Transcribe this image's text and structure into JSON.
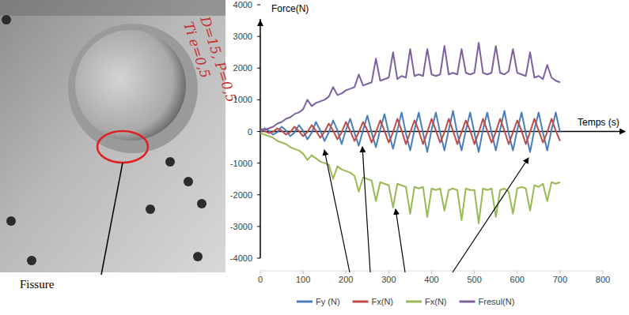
{
  "chart_data": {
    "type": "line",
    "ylabel": "Force(N)",
    "xlabel": "Temps (s)",
    "annotations": [
      "Fissure",
      "Ti e=0,5",
      "D=15, P=0,5"
    ],
    "x": [
      0,
      10,
      20,
      30,
      40,
      50,
      60,
      70,
      80,
      90,
      100,
      110,
      120,
      130,
      140,
      150,
      160,
      170,
      180,
      190,
      200,
      210,
      220,
      230,
      240,
      250,
      260,
      270,
      280,
      290,
      300,
      310,
      320,
      330,
      340,
      350,
      360,
      370,
      380,
      390,
      400,
      410,
      420,
      430,
      440,
      450,
      460,
      470,
      480,
      490,
      500,
      510,
      520,
      530,
      540,
      550,
      560,
      570,
      580,
      590,
      600,
      610,
      620,
      630,
      640,
      650,
      660,
      670,
      680,
      690,
      700
    ],
    "series": [
      {
        "name": "Fy (N)",
        "color": "#4a7ebb",
        "values": [
          0,
          100,
          20,
          -100,
          -20,
          150,
          30,
          -150,
          -30,
          200,
          20,
          -250,
          -40,
          300,
          30,
          -300,
          -30,
          350,
          40,
          -400,
          50,
          400,
          -50,
          -450,
          50,
          500,
          -40,
          -500,
          60,
          550,
          -50,
          -550,
          40,
          600,
          -60,
          -600,
          50,
          600,
          -50,
          -650,
          60,
          600,
          -40,
          -600,
          50,
          650,
          -60,
          -600,
          40,
          600,
          -50,
          -650,
          60,
          600,
          -40,
          -600,
          50,
          650,
          -60,
          -600,
          40,
          600,
          -50,
          -650,
          60,
          600,
          -40,
          -600,
          50,
          600,
          -30
        ]
      },
      {
        "name": "Fx(N)",
        "color": "#be4b48",
        "values": [
          100,
          10,
          -50,
          -10,
          100,
          20,
          -100,
          -20,
          150,
          10,
          -150,
          -20,
          200,
          20,
          -200,
          -10,
          250,
          30,
          -250,
          -30,
          300,
          20,
          -300,
          -20,
          300,
          30,
          -350,
          -30,
          350,
          20,
          -350,
          -20,
          400,
          30,
          -400,
          -30,
          350,
          20,
          -400,
          -20,
          400,
          30,
          -350,
          -30,
          400,
          20,
          -400,
          -20,
          350,
          30,
          -400,
          -30,
          400,
          20,
          -350,
          -20,
          400,
          30,
          -400,
          -30,
          350,
          20,
          -400,
          -20,
          400,
          30,
          -350,
          -30,
          400,
          20,
          -300
        ]
      },
      {
        "name": "Fx(N)",
        "color": "#98b954",
        "values": [
          -50,
          -100,
          -150,
          -200,
          -300,
          -350,
          -400,
          -500,
          -550,
          -600,
          -700,
          -900,
          -750,
          -850,
          -950,
          -1000,
          -1050,
          -1500,
          -1100,
          -1200,
          -1250,
          -1300,
          -1400,
          -1900,
          -1450,
          -1500,
          -1550,
          -2200,
          -1600,
          -1650,
          -1700,
          -2400,
          -1650,
          -1700,
          -1750,
          -2600,
          -1750,
          -1800,
          -1750,
          -2700,
          -1800,
          -1850,
          -1800,
          -2500,
          -1850,
          -1800,
          -1850,
          -2800,
          -1800,
          -1850,
          -1850,
          -2900,
          -1800,
          -1850,
          -1800,
          -2700,
          -1850,
          -1800,
          -1900,
          -2600,
          -1800,
          -1750,
          -1800,
          -2500,
          -1700,
          -1750,
          -1650,
          -2200,
          -1600,
          -1650,
          -1600
        ]
      },
      {
        "name": "Fresul(N)",
        "color": "#7d60a0",
        "values": [
          0,
          50,
          100,
          150,
          250,
          300,
          400,
          450,
          550,
          600,
          700,
          1000,
          800,
          900,
          950,
          1000,
          1100,
          1400,
          1150,
          1200,
          1300,
          1350,
          1400,
          1800,
          1450,
          1500,
          1550,
          2300,
          1600,
          1650,
          1700,
          2500,
          1650,
          1750,
          1700,
          2600,
          1750,
          1800,
          1750,
          2600,
          1800,
          1750,
          1800,
          2700,
          1800,
          1850,
          1800,
          2600,
          1850,
          1800,
          1850,
          2800,
          1850,
          1800,
          1850,
          2700,
          1850,
          1800,
          1900,
          2600,
          1850,
          1800,
          1750,
          2500,
          1700,
          1750,
          1650,
          2100,
          1700,
          1600,
          1550
        ]
      }
    ],
    "xlim": [
      0,
      800
    ],
    "xticks": [
      0,
      100,
      200,
      300,
      400,
      500,
      600,
      700,
      800
    ],
    "ylim": [
      -4000,
      4000
    ],
    "yticks": [
      -4000,
      -3000,
      -2000,
      -1000,
      0,
      1000,
      2000,
      3000,
      4000
    ],
    "grid": false,
    "legend": "bottom"
  }
}
